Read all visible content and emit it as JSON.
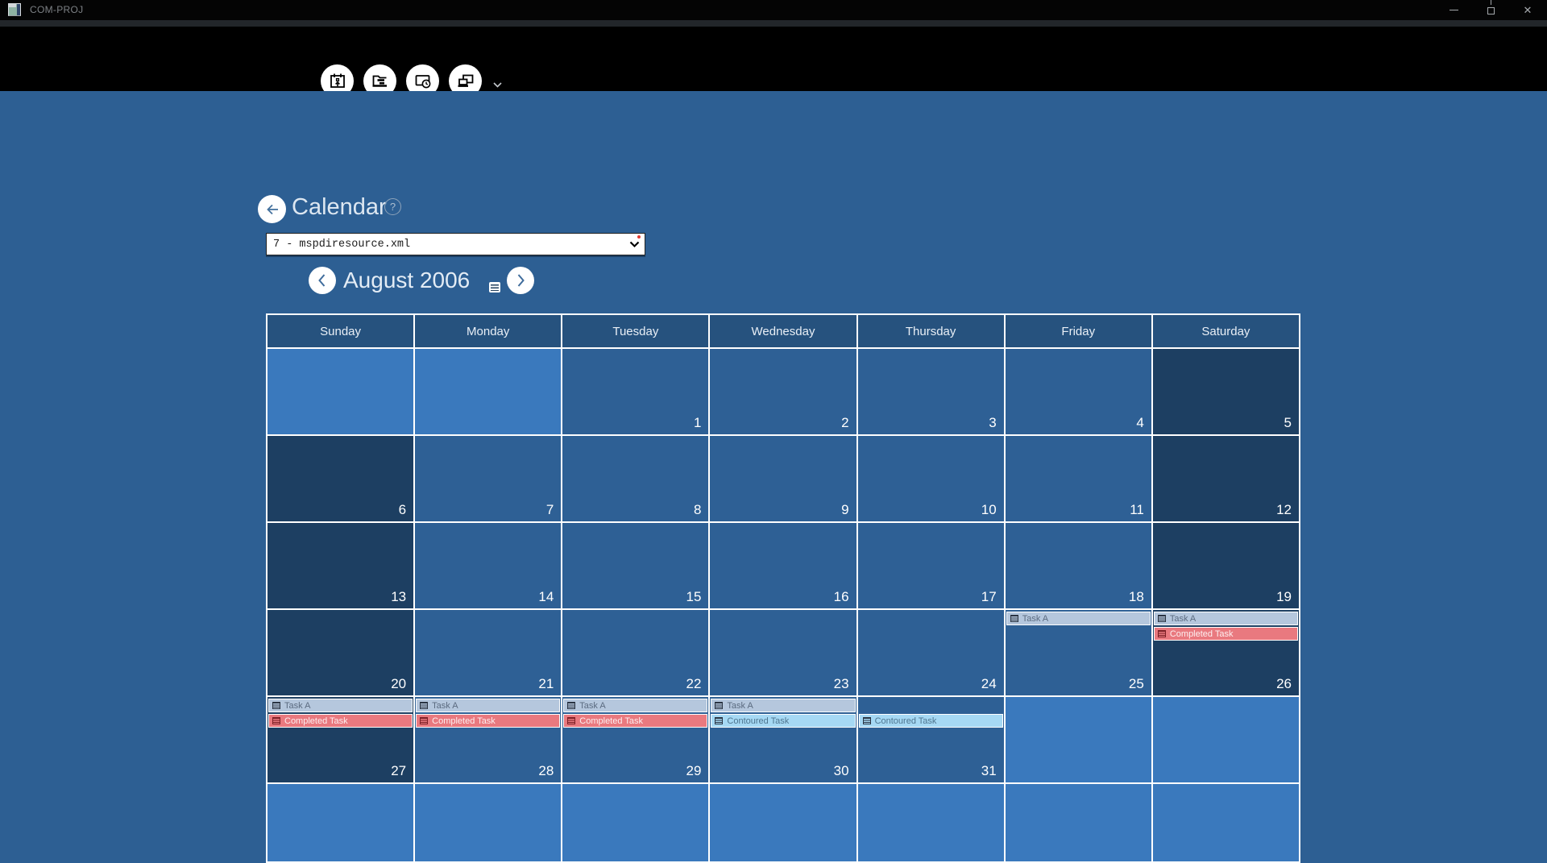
{
  "titlebar": {
    "title": "COM-PROJ"
  },
  "window_controls": {
    "minimize": "minimize",
    "restore": "restore",
    "close": "close"
  },
  "toolbar": {
    "buttons": [
      {
        "name": "calendar-import"
      },
      {
        "name": "project-folder"
      },
      {
        "name": "window-clock"
      },
      {
        "name": "device-windows",
        "has_dropdown": true
      }
    ]
  },
  "header": {
    "title": "Calendar",
    "help_glyph": "?"
  },
  "file_select": {
    "value": "7 - mspdiresource.xml"
  },
  "month_nav": {
    "label": "August 2006"
  },
  "calendar": {
    "day_headers": [
      "Sunday",
      "Monday",
      "Tuesday",
      "Wednesday",
      "Thursday",
      "Friday",
      "Saturday"
    ],
    "cell_colors": {
      "header": "#26527e",
      "out": "#3a79bd",
      "weekday": "#2e6095",
      "weekend": "#1d3f62"
    },
    "weeks": [
      [
        {
          "type": "out"
        },
        {
          "type": "out"
        },
        {
          "type": "weekday",
          "date": "1"
        },
        {
          "type": "weekday",
          "date": "2"
        },
        {
          "type": "weekday",
          "date": "3"
        },
        {
          "type": "weekday",
          "date": "4"
        },
        {
          "type": "weekend",
          "date": "5"
        }
      ],
      [
        {
          "type": "weekend",
          "date": "6"
        },
        {
          "type": "weekday",
          "date": "7"
        },
        {
          "type": "weekday",
          "date": "8"
        },
        {
          "type": "weekday",
          "date": "9"
        },
        {
          "type": "weekday",
          "date": "10"
        },
        {
          "type": "weekday",
          "date": "11"
        },
        {
          "type": "weekend",
          "date": "12"
        }
      ],
      [
        {
          "type": "weekend",
          "date": "13"
        },
        {
          "type": "weekday",
          "date": "14"
        },
        {
          "type": "weekday",
          "date": "15"
        },
        {
          "type": "weekday",
          "date": "16"
        },
        {
          "type": "weekday",
          "date": "17"
        },
        {
          "type": "weekday",
          "date": "18"
        },
        {
          "type": "weekend",
          "date": "19"
        }
      ],
      [
        {
          "type": "weekend",
          "date": "20"
        },
        {
          "type": "weekday",
          "date": "21"
        },
        {
          "type": "weekday",
          "date": "22"
        },
        {
          "type": "weekday",
          "date": "23"
        },
        {
          "type": "weekday",
          "date": "24"
        },
        {
          "type": "weekday",
          "date": "25",
          "tasks": [
            "taskA"
          ]
        },
        {
          "type": "weekend",
          "date": "26",
          "tasks": [
            "taskA",
            "completed"
          ]
        }
      ],
      [
        {
          "type": "weekend",
          "date": "27",
          "tasks": [
            "taskA",
            "completed"
          ]
        },
        {
          "type": "weekday",
          "date": "28",
          "tasks": [
            "taskA",
            "completed"
          ]
        },
        {
          "type": "weekday",
          "date": "29",
          "tasks": [
            "taskA",
            "completed"
          ]
        },
        {
          "type": "weekday",
          "date": "30",
          "tasks": [
            "taskA",
            "contoured"
          ]
        },
        {
          "type": "weekday",
          "date": "31",
          "tasks": [
            null,
            "contoured"
          ]
        },
        {
          "type": "out"
        },
        {
          "type": "out"
        }
      ],
      [
        {
          "type": "out"
        },
        {
          "type": "out"
        },
        {
          "type": "out"
        },
        {
          "type": "out"
        },
        {
          "type": "out"
        },
        {
          "type": "out"
        },
        {
          "type": "out"
        }
      ]
    ]
  },
  "tasks": {
    "taskA": {
      "label": "Task A",
      "bg": "#b5c7dd",
      "fg": "#5b6b80",
      "icon": "#2a3442"
    },
    "completed": {
      "label": "Completed Task",
      "bg": "#e9797f",
      "fg": "#fdeff0",
      "icon": "#7d2026"
    },
    "contoured": {
      "label": "Contoured Task",
      "bg": "#a6d9f4",
      "fg": "#4e758f",
      "icon": "#2a3442"
    }
  }
}
